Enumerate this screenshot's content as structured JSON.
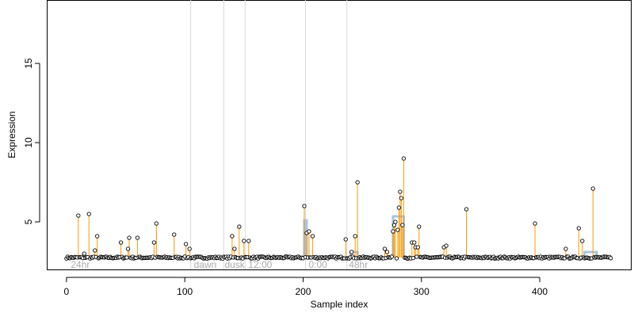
{
  "chart_data": {
    "type": "scatter",
    "xlabel": "Sample index",
    "ylabel": "Expression",
    "xlim": [
      -16,
      477
    ],
    "ylim": [
      2.0,
      19.0
    ],
    "x_ticks": [
      "0",
      "100",
      "200",
      "300",
      "400"
    ],
    "y_ticks": [
      "5",
      "10",
      "15"
    ],
    "baseline": 2.75,
    "grid": false,
    "colors": {
      "points": "#000000",
      "stems": "#ff9900",
      "segments": "#a9c4e6",
      "vlines": "#d9d9d9",
      "region_labels": "#aaaaaa"
    },
    "region_lines": [
      105,
      133,
      151,
      202,
      237
    ],
    "region_labels": [
      {
        "x": 3,
        "text": "24hr"
      },
      {
        "x": 107,
        "text": "dawn"
      },
      {
        "x": 133,
        "text": "dusk"
      },
      {
        "x": 153,
        "text": "12:00"
      },
      {
        "x": 204,
        "text": "0:00"
      },
      {
        "x": 238,
        "text": "48hr"
      }
    ],
    "segments": [
      {
        "x_start": 201,
        "x_end": 203,
        "y": 5.1
      },
      {
        "x_start": 240,
        "x_end": 246,
        "y": 3.1
      },
      {
        "x_start": 276,
        "x_end": 285,
        "y": 5.35
      },
      {
        "x_start": 438,
        "x_end": 448,
        "y": 3.1
      }
    ],
    "series": [
      {
        "outliers": [
          {
            "x": 10,
            "y": 5.4
          },
          {
            "x": 15,
            "y": 3.0
          },
          {
            "x": 19,
            "y": 5.5
          },
          {
            "x": 24,
            "y": 3.2
          },
          {
            "x": 26,
            "y": 4.1
          },
          {
            "x": 46,
            "y": 3.7
          },
          {
            "x": 52,
            "y": 3.3
          },
          {
            "x": 53,
            "y": 4.0
          },
          {
            "x": 60,
            "y": 4.0
          },
          {
            "x": 74,
            "y": 3.7
          },
          {
            "x": 76,
            "y": 4.9
          },
          {
            "x": 91,
            "y": 4.2
          },
          {
            "x": 101,
            "y": 3.6
          },
          {
            "x": 104,
            "y": 3.3
          },
          {
            "x": 140,
            "y": 4.1
          },
          {
            "x": 142,
            "y": 3.3
          },
          {
            "x": 146,
            "y": 4.7
          },
          {
            "x": 150,
            "y": 3.8
          },
          {
            "x": 154,
            "y": 3.8
          },
          {
            "x": 201,
            "y": 6.0
          },
          {
            "x": 203,
            "y": 4.3
          },
          {
            "x": 205,
            "y": 4.4
          },
          {
            "x": 208,
            "y": 4.1
          },
          {
            "x": 236,
            "y": 3.9
          },
          {
            "x": 241,
            "y": 3.1
          },
          {
            "x": 244,
            "y": 4.1
          },
          {
            "x": 246,
            "y": 7.5
          },
          {
            "x": 269,
            "y": 3.3
          },
          {
            "x": 271,
            "y": 3.1
          },
          {
            "x": 276,
            "y": 4.4
          },
          {
            "x": 277,
            "y": 4.8
          },
          {
            "x": 278,
            "y": 5.0
          },
          {
            "x": 280,
            "y": 4.5
          },
          {
            "x": 281,
            "y": 5.9
          },
          {
            "x": 282,
            "y": 6.9
          },
          {
            "x": 283,
            "y": 6.5
          },
          {
            "x": 284,
            "y": 4.8
          },
          {
            "x": 285,
            "y": 9.0
          },
          {
            "x": 292,
            "y": 3.7
          },
          {
            "x": 294,
            "y": 3.7
          },
          {
            "x": 295,
            "y": 3.4
          },
          {
            "x": 297,
            "y": 3.4
          },
          {
            "x": 298,
            "y": 4.7
          },
          {
            "x": 319,
            "y": 3.4
          },
          {
            "x": 321,
            "y": 3.5
          },
          {
            "x": 338,
            "y": 5.8
          },
          {
            "x": 396,
            "y": 4.9
          },
          {
            "x": 422,
            "y": 3.3
          },
          {
            "x": 433,
            "y": 4.6
          },
          {
            "x": 436,
            "y": 3.8
          },
          {
            "x": 445,
            "y": 7.1
          }
        ]
      }
    ]
  }
}
